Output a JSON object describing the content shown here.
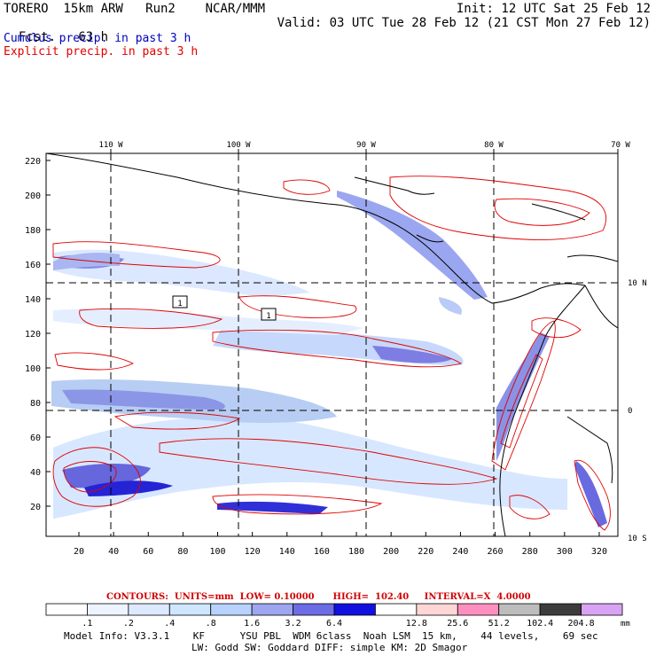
{
  "header": {
    "model": "TORERO  15km ARW   Run2    NCAR/MMM",
    "fcst_label": "Fcst.",
    "fcst_value": "63 h",
    "init": "Init: 12 UTC Sat 25 Feb 12",
    "valid": "Valid: 03 UTC Tue 28 Feb 12 (21 CST Mon 27 Feb 12)",
    "field1": "Cumulus precip. in past 3 h",
    "field2": "Explicit precip. in past 3 h",
    "field1_color": "#0000c0",
    "field2_color": "#e00000"
  },
  "map": {
    "lon_labels": [
      "110 W",
      "100 W",
      "90 W",
      "80 W",
      "70 W"
    ],
    "lat_labels": [
      "10 N",
      "0",
      "10 S"
    ],
    "left_ticks": [
      "220",
      "200",
      "180",
      "160",
      "140",
      "120",
      "100",
      "80",
      "60",
      "40",
      "20"
    ],
    "bottom_ticks": [
      "20",
      "40",
      "60",
      "80",
      "100",
      "120",
      "140",
      "160",
      "180",
      "200",
      "220",
      "240",
      "260",
      "280",
      "300",
      "320"
    ],
    "box_labels": [
      "1",
      "1"
    ],
    "coastline_color": "#000000",
    "explicit_contour_color": "#e00000"
  },
  "colorbar": {
    "values": [
      ".1",
      ".2",
      ".4",
      ".8",
      "1.6",
      "3.2",
      "6.4",
      "12.8",
      "25.6",
      "51.2",
      "102.4",
      "204.8"
    ],
    "colors": [
      "#ffffff",
      "#eef4ff",
      "#dde9ff",
      "#cfe6ff",
      "#b8d2ff",
      "#9da6ef",
      "#6c6ce6",
      "#1010e0",
      "#ffffff",
      "#ffd6d6",
      "#ff8fbf",
      "#bdbdbd",
      "#3c3c3c",
      "#d9a3f5"
    ],
    "unit": "mm"
  },
  "contour_info": {
    "text": "CONTOURS:  UNITS=mm  LOW= 0.10000      HIGH=  102.40     INTERVAL=X  4.0000"
  },
  "footer": {
    "line1": "Model Info: V3.3.1    KF      YSU PBL  WDM 6class  Noah LSM  15 km,    44 levels,    69 sec",
    "line2": "LW: Godd SW: Goddard DIFF: simple KM: 2D Smagor"
  }
}
